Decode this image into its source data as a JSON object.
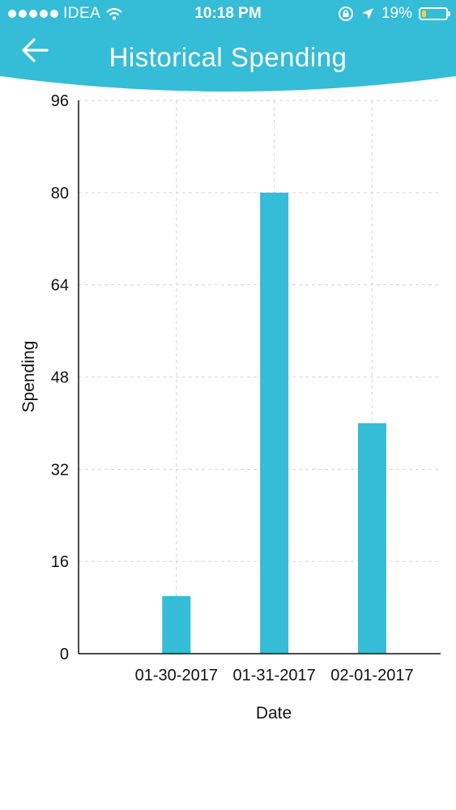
{
  "status_bar": {
    "carrier": "IDEA",
    "time": "10:18 PM",
    "battery_percent": "19%",
    "battery_level": 0.19,
    "icons": [
      "signal-dots-icon",
      "wifi-icon",
      "rotation-lock-icon",
      "location-arrow-icon",
      "battery-icon"
    ]
  },
  "header": {
    "title": "Historical Spending",
    "back_icon": "arrow-left-icon",
    "background": "#35bcd6"
  },
  "chart_data": {
    "type": "bar",
    "categories": [
      "01-30-2017",
      "01-31-2017",
      "02-01-2017"
    ],
    "values": [
      10,
      80,
      40
    ],
    "xlabel": "Date",
    "ylabel": "Spending",
    "yticks": [
      0,
      16,
      32,
      48,
      64,
      80,
      96
    ],
    "ylim": [
      0,
      96
    ],
    "bar_color": "#35bcd6",
    "grid": true
  }
}
